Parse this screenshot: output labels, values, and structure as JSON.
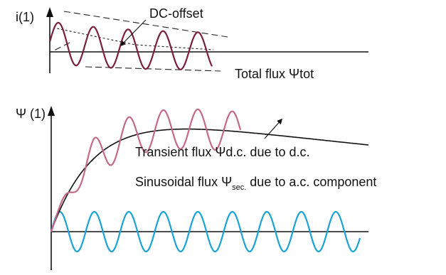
{
  "colors": {
    "current_wave": "#7b1f3f",
    "total_flux": "#c46a86",
    "transient_flux": "#111111",
    "sinusoidal_flux": "#1aa3d6",
    "axes": "#111111"
  },
  "top_plot": {
    "y_label": "i(1)",
    "annotation": "DC-offset"
  },
  "bottom_plot": {
    "y_label": "Ψ (1)",
    "labels": {
      "total_flux": "Total flux Ψtot",
      "transient_flux": "Transient flux Ψd.c. due to d.c.",
      "sinusoidal_prefix": "Sinusoidal flux Ψ",
      "sinusoidal_subscript": "sec.",
      "sinusoidal_suffix": " due to a.c. component"
    }
  }
}
